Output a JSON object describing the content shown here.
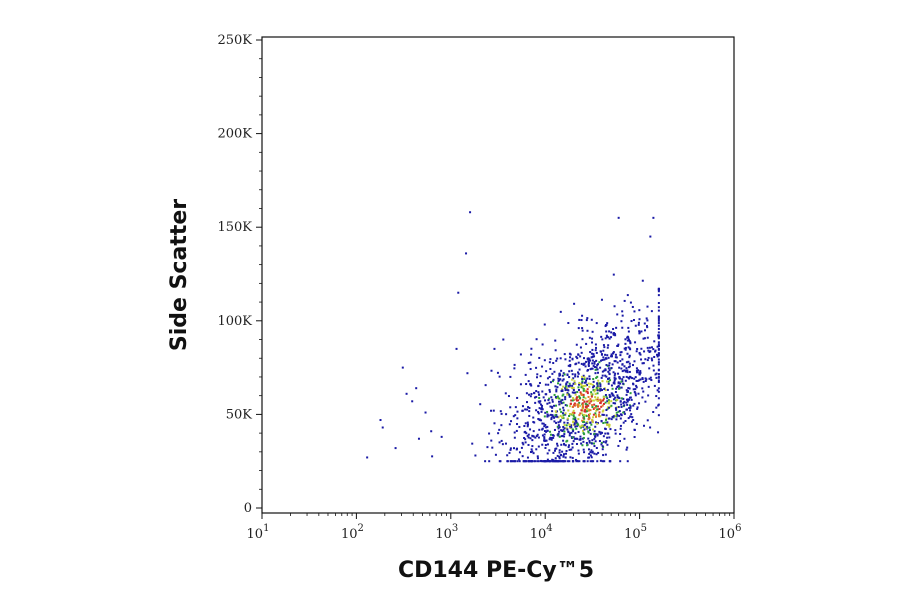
{
  "chart_data": {
    "type": "scatter",
    "title": "",
    "xlabel": "CD144 PE-Cy™5",
    "ylabel": "Side Scatter",
    "x_scale": "log",
    "xlim": [
      10,
      1000000
    ],
    "ylim": [
      0,
      250000
    ],
    "x_ticks": [
      {
        "value": 10,
        "base": "10",
        "exp": "1"
      },
      {
        "value": 100,
        "base": "10",
        "exp": "2"
      },
      {
        "value": 1000,
        "base": "10",
        "exp": "3"
      },
      {
        "value": 10000,
        "base": "10",
        "exp": "4"
      },
      {
        "value": 100000,
        "base": "10",
        "exp": "5"
      },
      {
        "value": 1000000,
        "base": "10",
        "exp": "6"
      }
    ],
    "y_ticks": [
      {
        "value": 0,
        "label": "0"
      },
      {
        "value": 50000,
        "label": "50K"
      },
      {
        "value": 100000,
        "label": "100K"
      },
      {
        "value": 150000,
        "label": "150K"
      },
      {
        "value": 200000,
        "label": "200K"
      },
      {
        "value": 250000,
        "label": "250K"
      }
    ],
    "grid": false,
    "legend": "none",
    "density_colors": [
      "#1a1aa6",
      "#2a9d3a",
      "#c9d23a",
      "#e07b2c",
      "#d42a2a"
    ],
    "population": {
      "center": {
        "x": 28000,
        "y": 55000
      },
      "approx_event_count": 1500,
      "x_range": [
        150,
        160000
      ],
      "y_range": [
        25000,
        160000
      ]
    },
    "sparse_points": [
      {
        "x": 130,
        "y": 27000
      },
      {
        "x": 180,
        "y": 47000
      },
      {
        "x": 190,
        "y": 43000
      },
      {
        "x": 260,
        "y": 32000
      },
      {
        "x": 310,
        "y": 75000
      },
      {
        "x": 340,
        "y": 61000
      },
      {
        "x": 390,
        "y": 57000
      },
      {
        "x": 430,
        "y": 64000
      },
      {
        "x": 460,
        "y": 37000
      },
      {
        "x": 540,
        "y": 51000
      },
      {
        "x": 620,
        "y": 41000
      },
      {
        "x": 800,
        "y": 38000
      },
      {
        "x": 1150,
        "y": 85000
      },
      {
        "x": 1200,
        "y": 115000
      },
      {
        "x": 1450,
        "y": 136000
      },
      {
        "x": 1600,
        "y": 158000
      },
      {
        "x": 1500,
        "y": 72000
      },
      {
        "x": 2900,
        "y": 85000
      },
      {
        "x": 3600,
        "y": 90000
      },
      {
        "x": 60000,
        "y": 155000
      },
      {
        "x": 140000,
        "y": 155000
      },
      {
        "x": 130000,
        "y": 145000
      }
    ]
  }
}
